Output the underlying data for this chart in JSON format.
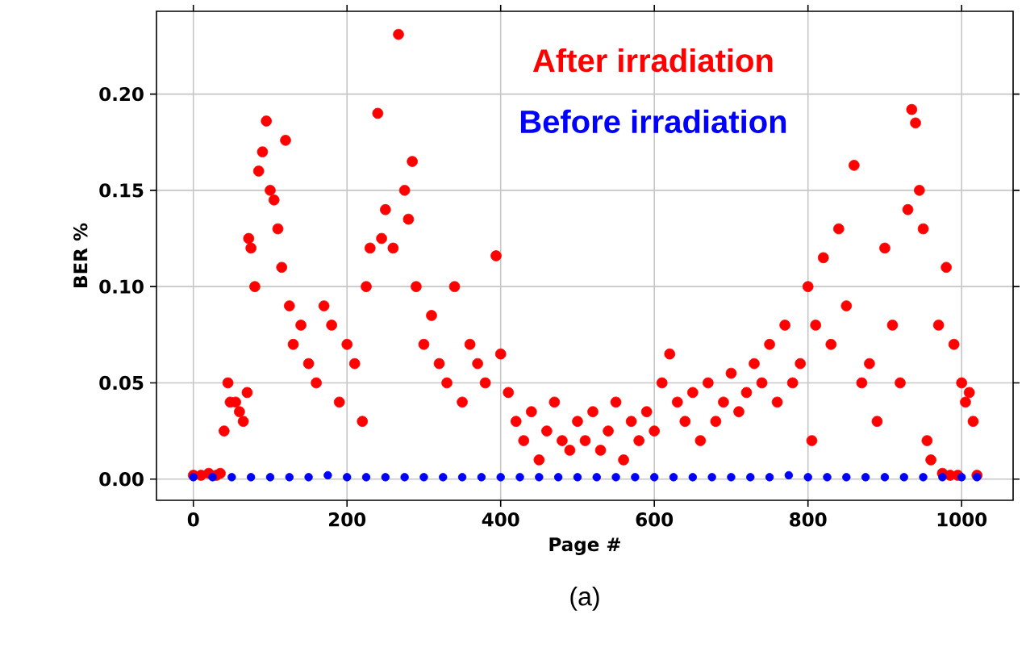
{
  "chart_data": {
    "type": "scatter",
    "xlabel": "Page #",
    "ylabel": "BER %",
    "annotations": [
      "(a)"
    ],
    "xlim": [
      -48,
      1067
    ],
    "ylim": [
      -0.011,
      0.243
    ],
    "xticks": [
      0,
      200,
      400,
      600,
      800,
      1000
    ],
    "yticks": [
      {
        "value": 0,
        "label": "0.00"
      },
      {
        "value": 0.05,
        "label": "0.05"
      },
      {
        "value": 0.1,
        "label": "0.10"
      },
      {
        "value": 0.15,
        "label": "0.15"
      },
      {
        "value": 0.2,
        "label": "0.20"
      }
    ],
    "grid": true,
    "legend": "top right",
    "marker": "circle",
    "series": [
      {
        "name": "After irradiation",
        "color": "#ff0000",
        "x": [
          0,
          10,
          20,
          30,
          35,
          40,
          45,
          48,
          55,
          60,
          65,
          70,
          72,
          75,
          80,
          85,
          90,
          95,
          100,
          105,
          110,
          115,
          120,
          125,
          130,
          140,
          150,
          160,
          170,
          180,
          190,
          200,
          210,
          220,
          225,
          230,
          240,
          245,
          250,
          260,
          267,
          275,
          280,
          285,
          290,
          300,
          310,
          320,
          330,
          340,
          350,
          360,
          370,
          380,
          394,
          400,
          410,
          420,
          430,
          440,
          450,
          460,
          470,
          480,
          490,
          500,
          510,
          520,
          530,
          540,
          550,
          560,
          570,
          580,
          590,
          600,
          610,
          620,
          630,
          640,
          650,
          660,
          670,
          680,
          690,
          700,
          710,
          720,
          730,
          740,
          750,
          760,
          770,
          780,
          790,
          800,
          805,
          810,
          820,
          830,
          840,
          850,
          860,
          870,
          880,
          890,
          900,
          910,
          920,
          930,
          935,
          940,
          945,
          950,
          955,
          960,
          970,
          975,
          980,
          985,
          990,
          995,
          1000,
          1005,
          1010,
          1015,
          1020
        ],
        "values": [
          0.002,
          0.002,
          0.003,
          0.002,
          0.003,
          0.025,
          0.05,
          0.04,
          0.04,
          0.035,
          0.03,
          0.045,
          0.125,
          0.12,
          0.1,
          0.16,
          0.17,
          0.186,
          0.15,
          0.145,
          0.13,
          0.11,
          0.176,
          0.09,
          0.07,
          0.08,
          0.06,
          0.05,
          0.09,
          0.08,
          0.04,
          0.07,
          0.06,
          0.03,
          0.1,
          0.12,
          0.19,
          0.125,
          0.14,
          0.12,
          0.231,
          0.15,
          0.135,
          0.165,
          0.1,
          0.07,
          0.085,
          0.06,
          0.05,
          0.1,
          0.04,
          0.07,
          0.06,
          0.05,
          0.116,
          0.065,
          0.045,
          0.03,
          0.02,
          0.035,
          0.01,
          0.025,
          0.04,
          0.02,
          0.015,
          0.03,
          0.02,
          0.035,
          0.015,
          0.025,
          0.04,
          0.01,
          0.03,
          0.02,
          0.035,
          0.025,
          0.05,
          0.065,
          0.04,
          0.03,
          0.045,
          0.02,
          0.05,
          0.03,
          0.04,
          0.055,
          0.035,
          0.045,
          0.06,
          0.05,
          0.07,
          0.04,
          0.08,
          0.05,
          0.06,
          0.1,
          0.02,
          0.08,
          0.115,
          0.07,
          0.13,
          0.09,
          0.163,
          0.05,
          0.06,
          0.03,
          0.12,
          0.08,
          0.05,
          0.14,
          0.192,
          0.185,
          0.15,
          0.13,
          0.02,
          0.01,
          0.08,
          0.003,
          0.11,
          0.002,
          0.07,
          0.002,
          0.05,
          0.04,
          0.045,
          0.03,
          0.002
        ]
      },
      {
        "name": "Before irradiation",
        "color": "#0000ff",
        "x": [
          0,
          25,
          50,
          75,
          100,
          125,
          150,
          175,
          200,
          225,
          250,
          275,
          300,
          325,
          350,
          375,
          400,
          425,
          450,
          475,
          500,
          525,
          550,
          575,
          600,
          625,
          650,
          675,
          700,
          725,
          750,
          775,
          800,
          825,
          850,
          875,
          900,
          925,
          950,
          975,
          1000,
          1020
        ],
        "values": [
          0.001,
          0.001,
          0.001,
          0.001,
          0.001,
          0.001,
          0.001,
          0.002,
          0.001,
          0.001,
          0.001,
          0.001,
          0.001,
          0.001,
          0.001,
          0.001,
          0.001,
          0.001,
          0.001,
          0.001,
          0.001,
          0.001,
          0.001,
          0.001,
          0.001,
          0.001,
          0.001,
          0.001,
          0.001,
          0.001,
          0.001,
          0.002,
          0.001,
          0.001,
          0.001,
          0.001,
          0.001,
          0.001,
          0.001,
          0.001,
          0.001,
          0.001
        ]
      }
    ]
  }
}
